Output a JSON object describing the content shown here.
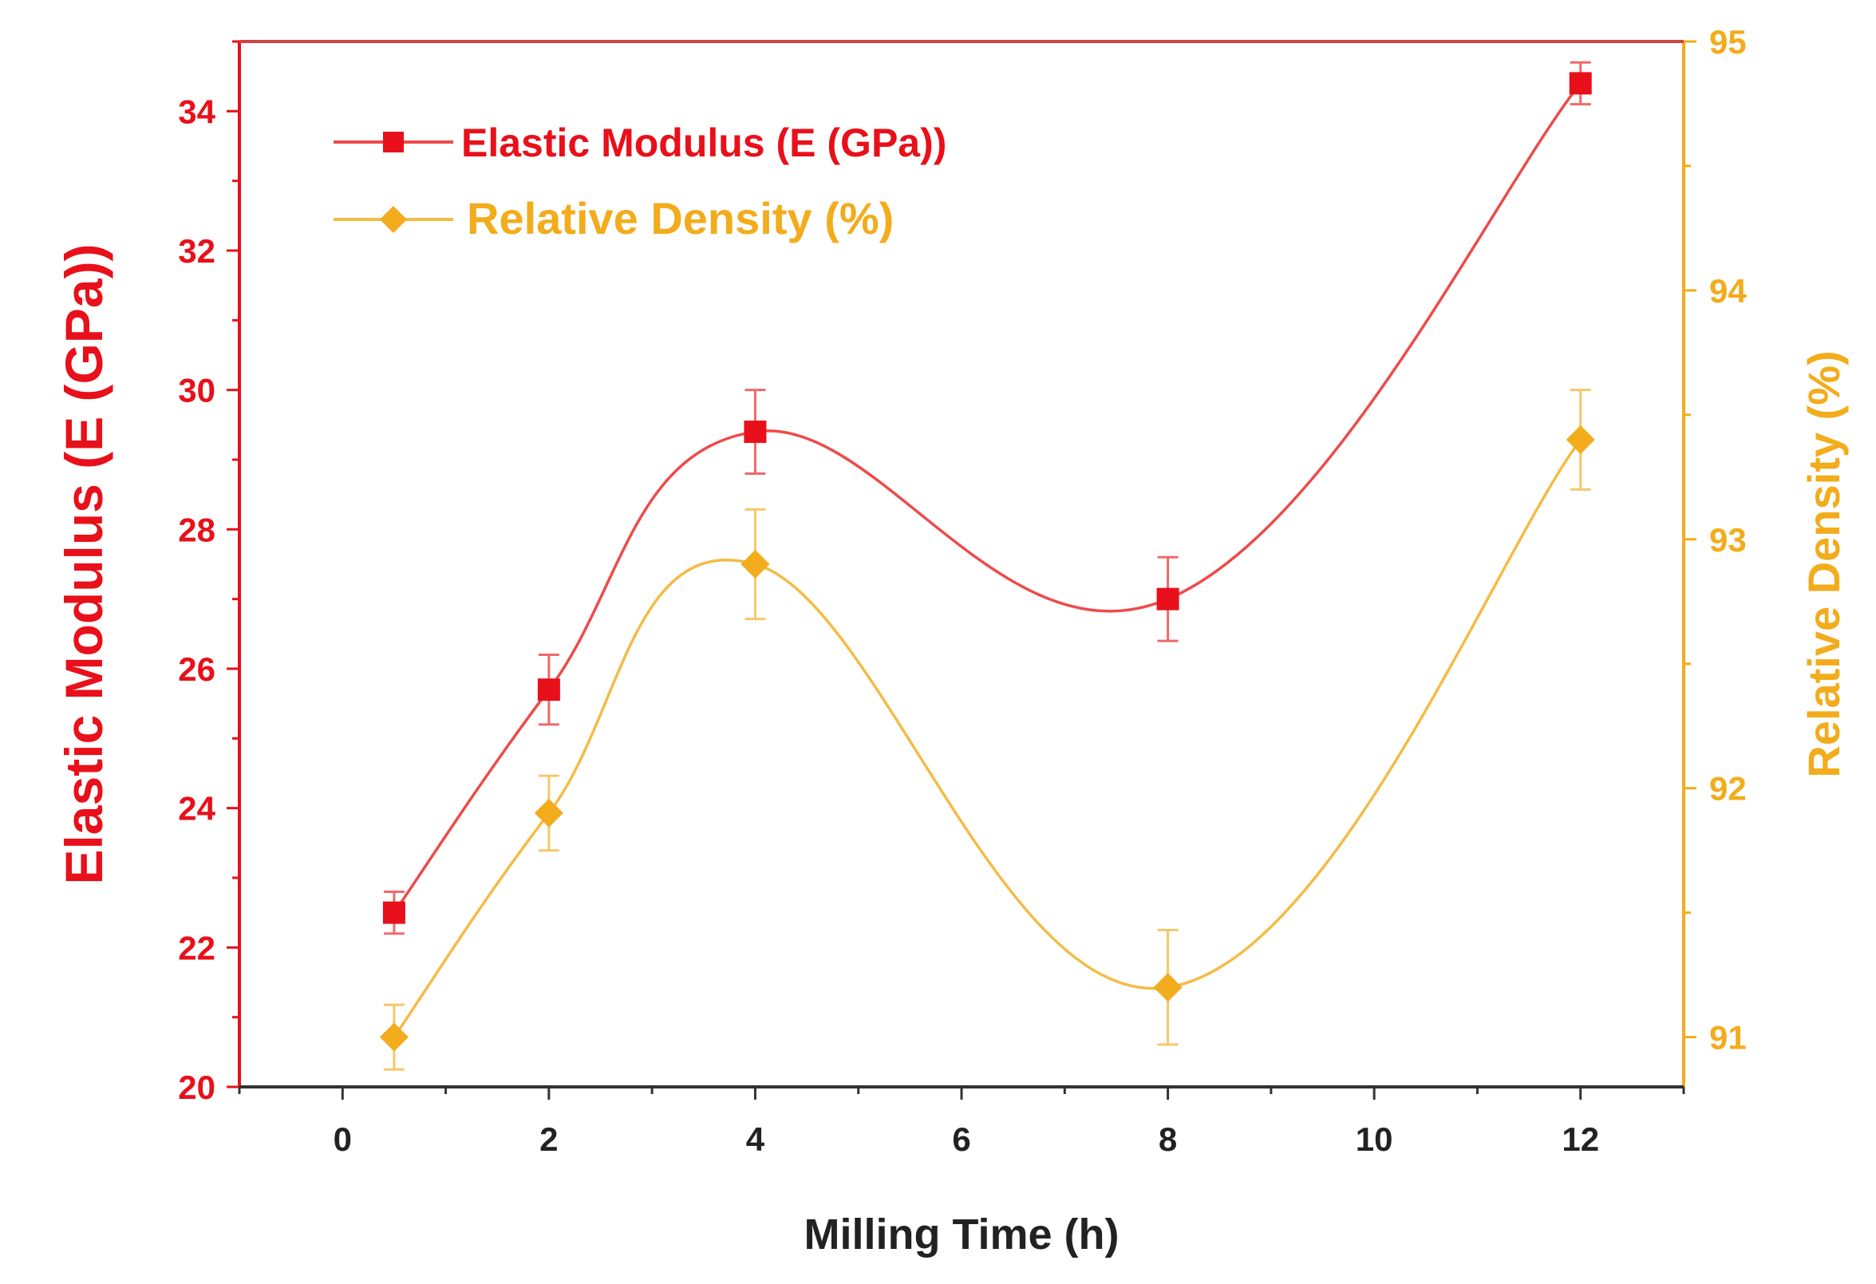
{
  "chart_data": {
    "type": "line",
    "title": "",
    "xlabel": "Milling Time (h)",
    "x_ticks": [
      0,
      2,
      4,
      6,
      8,
      10,
      12
    ],
    "xlim": [
      -1,
      13
    ],
    "y_left": {
      "label": "Elastic Modulus (E (GPa))",
      "ticks": [
        20,
        22,
        24,
        26,
        28,
        30,
        32,
        34
      ],
      "lim": [
        20,
        35
      ],
      "color": "#e8101a"
    },
    "y_right": {
      "label": "Relative Density (%)",
      "ticks": [
        91,
        92,
        93,
        94,
        95
      ],
      "lim": [
        90.8,
        95
      ],
      "color": "#f2ac1c"
    },
    "axis_color_bottom": "#333333",
    "legend_position": "top-left",
    "series": [
      {
        "name": "Elastic Modulus (E (GPa))",
        "axis": "left",
        "marker": "square",
        "color": "#e8101a",
        "line_color": "#ee4a4a",
        "x": [
          0.5,
          2,
          4,
          8,
          12
        ],
        "values": [
          22.5,
          25.7,
          29.4,
          27.0,
          34.4
        ],
        "errors": [
          0.3,
          0.5,
          0.6,
          0.6,
          0.3
        ]
      },
      {
        "name": "Relative Density (%)",
        "axis": "right",
        "marker": "diamond",
        "color": "#f2ac1c",
        "line_color": "#f4bb45",
        "x": [
          0.5,
          2,
          4,
          8,
          12
        ],
        "values": [
          91.0,
          91.9,
          92.9,
          91.2,
          93.4
        ],
        "errors": [
          0.13,
          0.15,
          0.22,
          0.23,
          0.2
        ]
      }
    ]
  }
}
